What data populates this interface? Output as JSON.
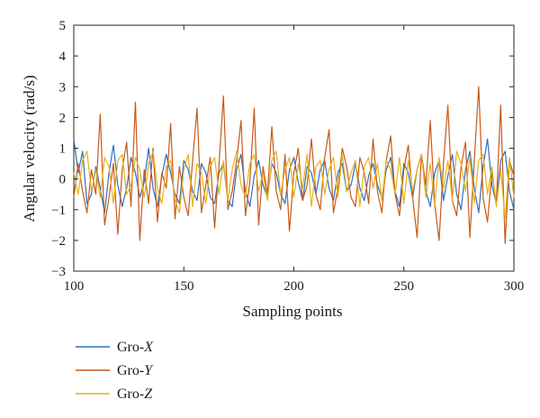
{
  "chart_data": {
    "type": "line",
    "xlabel": "Sampling points",
    "ylabel": "Angular velocity (rad/s)",
    "xlim": [
      100,
      300
    ],
    "ylim": [
      -3,
      5
    ],
    "xticks": [
      100,
      150,
      200,
      250,
      300
    ],
    "yticks": [
      -3,
      -2,
      -1,
      0,
      1,
      2,
      3,
      4,
      5
    ],
    "grid": false,
    "legend_position": "below-left",
    "series": [
      {
        "name_prefix": "Gro-",
        "name_axis": "X",
        "color": "#2f6fc0",
        "x": [
          100,
          102,
          104,
          106,
          108,
          110,
          112,
          114,
          116,
          118,
          120,
          122,
          124,
          126,
          128,
          130,
          132,
          134,
          136,
          138,
          140,
          142,
          144,
          146,
          148,
          150,
          152,
          154,
          156,
          158,
          160,
          162,
          164,
          166,
          168,
          170,
          172,
          174,
          176,
          178,
          180,
          182,
          184,
          186,
          188,
          190,
          192,
          194,
          196,
          198,
          200,
          202,
          204,
          206,
          208,
          210,
          212,
          214,
          216,
          218,
          220,
          222,
          224,
          226,
          228,
          230,
          232,
          234,
          236,
          238,
          240,
          242,
          244,
          246,
          248,
          250,
          252,
          254,
          256,
          258,
          260,
          262,
          264,
          266,
          268,
          270,
          272,
          274,
          276,
          278,
          280,
          282,
          284,
          286,
          288,
          290,
          292,
          294,
          296,
          298,
          300
        ],
        "values": [
          1.3,
          0.2,
          0.9,
          -0.8,
          -0.5,
          0.4,
          -0.3,
          -1.1,
          0.2,
          1.1,
          -0.2,
          -0.9,
          -0.3,
          0.7,
          0.2,
          -0.6,
          -0.1,
          1.0,
          -0.3,
          -0.9,
          0.1,
          0.8,
          0.2,
          -0.5,
          -0.8,
          0.6,
          0.3,
          -0.4,
          -0.7,
          0.5,
          0.2,
          -0.6,
          -0.8,
          0.2,
          0.5,
          -0.7,
          -0.9,
          0.3,
          0.8,
          -0.4,
          -0.9,
          0.1,
          0.6,
          -0.2,
          -0.6,
          0.5,
          0.2,
          -0.5,
          -0.8,
          0.3,
          0.7,
          -0.1,
          -0.7,
          0.4,
          0.2,
          -0.5,
          0.3,
          0.6,
          -0.3,
          -0.7,
          0.2,
          0.5,
          -0.4,
          -0.2,
          0.5,
          -0.3,
          -0.7,
          0.1,
          0.5,
          -0.2,
          -0.6,
          0.3,
          0.7,
          -0.4,
          -0.9,
          0.5,
          0.2,
          -0.6,
          0.3,
          0.8,
          -0.4,
          -0.9,
          0.2,
          0.6,
          -0.7,
          0.1,
          0.8,
          -0.5,
          -1.0,
          0.3,
          0.9,
          -0.3,
          -1.1,
          0.4,
          1.3,
          -0.2,
          -0.8,
          0.6,
          0.9,
          -0.4,
          -1.0
        ]
      },
      {
        "name_prefix": "Gro-",
        "name_axis": "Y",
        "color": "#c85a17",
        "x": [
          100,
          102,
          104,
          106,
          108,
          110,
          112,
          114,
          116,
          118,
          120,
          122,
          124,
          126,
          128,
          130,
          132,
          134,
          136,
          138,
          140,
          142,
          144,
          146,
          148,
          150,
          152,
          154,
          156,
          158,
          160,
          162,
          164,
          166,
          168,
          170,
          172,
          174,
          176,
          178,
          180,
          182,
          184,
          186,
          188,
          190,
          192,
          194,
          196,
          198,
          200,
          202,
          204,
          206,
          208,
          210,
          212,
          214,
          216,
          218,
          220,
          222,
          224,
          226,
          228,
          230,
          232,
          234,
          236,
          238,
          240,
          242,
          244,
          246,
          248,
          250,
          252,
          254,
          256,
          258,
          260,
          262,
          264,
          266,
          268,
          270,
          272,
          274,
          276,
          278,
          280,
          282,
          284,
          286,
          288,
          290,
          292,
          294,
          296,
          298,
          300
        ],
        "values": [
          -0.6,
          0.5,
          -0.4,
          -1.1,
          0.3,
          -0.5,
          2.1,
          -1.5,
          -0.6,
          0.5,
          -1.8,
          0.3,
          1.2,
          -0.9,
          2.5,
          -2.0,
          0.3,
          -0.8,
          1.0,
          -1.4,
          0.2,
          -0.3,
          1.8,
          -1.3,
          0.4,
          -0.6,
          -1.2,
          0.6,
          2.3,
          -1.1,
          -0.2,
          0.7,
          -1.6,
          0.5,
          2.7,
          -1.0,
          -0.4,
          0.6,
          1.9,
          -1.2,
          -0.1,
          2.3,
          -1.5,
          0.4,
          -0.5,
          1.7,
          -0.4,
          -1.0,
          0.8,
          -1.7,
          0.2,
          1.0,
          -0.7,
          -0.2,
          1.3,
          -0.5,
          -1.0,
          0.7,
          1.6,
          -1.1,
          -0.3,
          1.0,
          0.4,
          -0.6,
          -0.9,
          0.7,
          0.2,
          -0.8,
          1.3,
          -0.4,
          -1.1,
          0.6,
          1.4,
          -0.5,
          -1.2,
          0.3,
          1.1,
          -0.6,
          -1.9,
          0.8,
          -0.2,
          1.9,
          -0.8,
          -2.0,
          0.5,
          2.4,
          -0.7,
          -1.2,
          0.4,
          1.2,
          -1.9,
          0.6,
          3.0,
          -0.6,
          -1.4,
          0.2,
          -0.8,
          2.4,
          -2.1,
          0.6,
          0.1
        ]
      },
      {
        "name_prefix": "Gro-",
        "name_axis": "Z",
        "color": "#e5b21b",
        "x": [
          100,
          102,
          104,
          106,
          108,
          110,
          112,
          114,
          116,
          118,
          120,
          122,
          124,
          126,
          128,
          130,
          132,
          134,
          136,
          138,
          140,
          142,
          144,
          146,
          148,
          150,
          152,
          154,
          156,
          158,
          160,
          162,
          164,
          166,
          168,
          170,
          172,
          174,
          176,
          178,
          180,
          182,
          184,
          186,
          188,
          190,
          192,
          194,
          196,
          198,
          200,
          202,
          204,
          206,
          208,
          210,
          212,
          214,
          216,
          218,
          220,
          222,
          224,
          226,
          228,
          230,
          232,
          234,
          236,
          238,
          240,
          242,
          244,
          246,
          248,
          250,
          252,
          254,
          256,
          258,
          260,
          262,
          264,
          266,
          268,
          270,
          272,
          274,
          276,
          278,
          280,
          282,
          284,
          286,
          288,
          290,
          292,
          294,
          296,
          298,
          300
        ],
        "values": [
          0.2,
          -0.5,
          0.6,
          0.9,
          -0.4,
          0.3,
          -0.6,
          0.7,
          0.4,
          -0.8,
          0.6,
          0.8,
          -0.5,
          -0.2,
          0.7,
          0.3,
          -0.6,
          0.5,
          0.9,
          -0.3,
          -0.8,
          0.4,
          0.6,
          -0.7,
          -1.1,
          0.3,
          0.8,
          -0.9,
          0.5,
          0.2,
          -0.8,
          0.4,
          0.7,
          -0.5,
          0.6,
          -0.7,
          0.3,
          0.9,
          -0.2,
          -0.6,
          0.5,
          0.8,
          -0.4,
          0.2,
          -0.7,
          0.6,
          0.9,
          -0.5,
          0.3,
          0.7,
          -0.6,
          0.5,
          -0.3,
          0.8,
          -0.9,
          0.4,
          0.6,
          -0.5,
          0.3,
          0.7,
          -0.6,
          0.8,
          -0.4,
          0.2,
          0.6,
          -0.9,
          0.4,
          0.7,
          -0.3,
          0.5,
          -0.7,
          0.6,
          0.3,
          -0.5,
          0.7,
          -0.8,
          0.6,
          -0.4,
          0.3,
          0.8,
          -0.6,
          0.5,
          -0.9,
          0.7,
          -0.3,
          0.6,
          -0.7,
          0.9,
          0.5,
          -0.4,
          0.7,
          -0.8,
          0.6,
          0.8,
          -0.5,
          0.4,
          -0.9,
          0.3,
          -1.3,
          0.7,
          -0.6
        ]
      }
    ]
  }
}
